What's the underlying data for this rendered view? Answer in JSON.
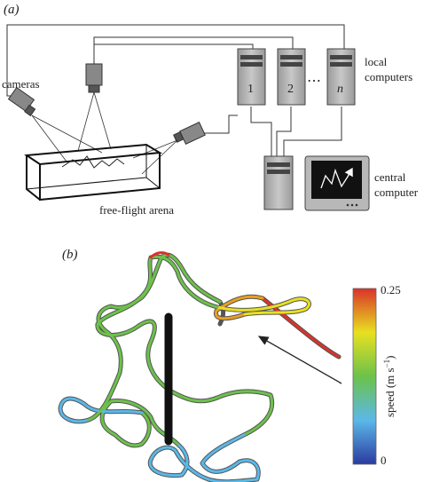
{
  "panel_a": {
    "label": "(a)",
    "cameras_label": "cameras",
    "arena_label": "free-flight arena",
    "local_computers_label_line1": "local",
    "local_computers_label_line2": "computers",
    "local_computer_numbers": [
      "1",
      "2",
      "n"
    ],
    "ellipsis": "⋯",
    "central_computer_label_line1": "central",
    "central_computer_label_line2": "computer"
  },
  "panel_b": {
    "label": "(b)",
    "colorbar": {
      "max_label": "0.25",
      "min_label": "0",
      "axis_label": "speed (m s",
      "axis_label_exponent": "−1",
      "axis_label_close": ")",
      "range": [
        0,
        0.25
      ],
      "colors": [
        "#2b3aa0",
        "#5bb8e8",
        "#6cc24a",
        "#e8e020",
        "#d9332a"
      ]
    }
  }
}
